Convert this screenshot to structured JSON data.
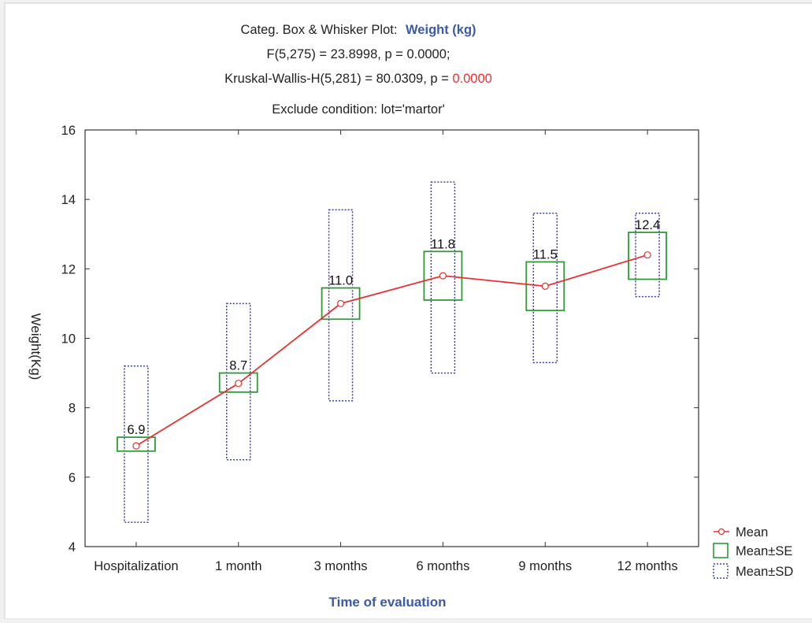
{
  "chart_data": {
    "type": "box",
    "title_prefix": "Categ. Box & Whisker Plot:",
    "title_variable": "Weight (kg)",
    "stats_line1": "F(5,275) = 23.8998, p = 0.0000;",
    "stats_line2_prefix": "Kruskal-Wallis-H(5,281) = 80.0309, p = ",
    "stats_line2_p": "0.0000",
    "exclude_line": "Exclude condition: lot='martor'",
    "xlabel": "Time of evaluation",
    "ylabel": "Weight(Kg)",
    "ylim": [
      4,
      16
    ],
    "yticks": [
      4,
      6,
      8,
      10,
      12,
      14,
      16
    ],
    "categories": [
      "Hospitalization",
      "1 month",
      "3 months",
      "6 months",
      "9 months",
      "12 months"
    ],
    "series": [
      {
        "name": "Mean",
        "values": [
          6.9,
          8.7,
          11.0,
          11.8,
          11.5,
          12.4
        ]
      },
      {
        "name": "Mean±SE",
        "low": [
          6.75,
          8.45,
          10.55,
          11.1,
          10.8,
          11.7
        ],
        "high": [
          7.15,
          9.0,
          11.45,
          12.5,
          12.2,
          13.05
        ]
      },
      {
        "name": "Mean±SD",
        "low": [
          4.7,
          6.5,
          8.2,
          9.0,
          9.3,
          11.2
        ],
        "high": [
          9.2,
          11.0,
          13.7,
          14.5,
          13.6,
          13.6
        ]
      }
    ],
    "data_labels": [
      "6.9",
      "8.7",
      "11.0",
      "11.8",
      "11.5",
      "12.4"
    ],
    "grid": false,
    "legend_position": "bottom-right",
    "colors": {
      "mean_line": "#e8312f",
      "se_box": "#2f9a3a",
      "sd_box": "#3a3fa8",
      "title_variable": "#3a5aa8",
      "p_value": "#e8312f",
      "xlabel": "#3a5aa8"
    }
  }
}
